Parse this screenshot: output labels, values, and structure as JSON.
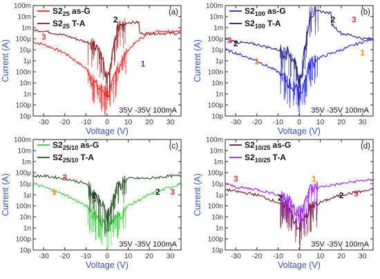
{
  "chart_data": [
    {
      "type": "line",
      "panel_label": "(a)",
      "xlabel": "Voltage (V)",
      "ylabel": "Current (A)",
      "xlim": [
        -35,
        35
      ],
      "ylog_exp_lim": [
        -11,
        -1
      ],
      "x_ticks": [
        -30,
        -20,
        -10,
        0,
        10,
        20,
        30
      ],
      "y_tick_labels": [
        "10p",
        "100p",
        "1n",
        "10n",
        "100n",
        "1µ",
        "10µ",
        "100µ",
        "1m",
        "10m",
        "100m"
      ],
      "annotation": "35V  -35V 100mA",
      "series": [
        {
          "prefix": "S2",
          "sub": "25",
          "suffix": " as-G",
          "color": "#ff1a1a",
          "points": [
            [
              -35,
              5e-05
            ],
            [
              -30,
              3e-05
            ],
            [
              -20,
              5e-06
            ],
            [
              -10,
              2e-07
            ],
            [
              -5,
              5e-09
            ],
            [
              -2,
              2e-09
            ],
            [
              0,
              1e-09
            ],
            [
              2,
              3e-09
            ],
            [
              5,
              2e-07
            ],
            [
              10,
              1e-05
            ],
            [
              15,
              8e-05
            ],
            [
              20,
              0.0003
            ],
            [
              25,
              0.0005
            ],
            [
              30,
              0.0005
            ],
            [
              35,
              0.0005
            ]
          ]
        },
        {
          "prefix": "S2",
          "sub": "25",
          "suffix": " T-A",
          "color": "#8b1a1a",
          "points": [
            [
              -35,
              0.0006
            ],
            [
              -30,
              0.0005
            ],
            [
              -20,
              0.0002
            ],
            [
              -10,
              5e-05
            ],
            [
              -5,
              3e-05
            ],
            [
              -2,
              1e-06
            ],
            [
              0,
              1e-08
            ],
            [
              2,
              1e-06
            ],
            [
              5,
              0.001
            ],
            [
              10,
              0.003
            ],
            [
              15,
              0.003
            ],
            [
              15.5,
              0.0003
            ],
            [
              20,
              0.0003
            ],
            [
              25,
              0.0003
            ],
            [
              30,
              0.0003
            ],
            [
              35,
              0.0003
            ]
          ]
        }
      ],
      "markers": [
        {
          "text": "3",
          "x": -30,
          "y": 8e-05,
          "color": "#e8334a"
        },
        {
          "text": "2",
          "x": 4,
          "y": 0.003,
          "color": "#111111"
        },
        {
          "text": "1",
          "x": 17,
          "y": 3e-07,
          "color": "#6633cc"
        }
      ]
    },
    {
      "type": "line",
      "panel_label": "(b)",
      "xlabel": "Voltage (V)",
      "ylabel": "Current (A)",
      "xlim": [
        -35,
        35
      ],
      "ylog_exp_lim": [
        -11,
        -1
      ],
      "x_ticks": [
        -30,
        -20,
        -10,
        0,
        10,
        20,
        30
      ],
      "y_tick_labels": [
        "10p",
        "100p",
        "1n",
        "10n",
        "100n",
        "1µ",
        "10µ",
        "100µ",
        "1m",
        "10m",
        "100m"
      ],
      "annotation": "35V  -35V 100mA",
      "series": [
        {
          "prefix": "S2",
          "sub": "100",
          "suffix": " as-G",
          "color": "#1a1aff",
          "points": [
            [
              -35,
              1e-05
            ],
            [
              -30,
              5e-06
            ],
            [
              -20,
              1e-06
            ],
            [
              -10,
              1e-07
            ],
            [
              -5,
              1e-08
            ],
            [
              -2,
              3e-09
            ],
            [
              0,
              1e-09
            ],
            [
              2,
              5e-09
            ],
            [
              5,
              5e-07
            ],
            [
              10,
              2e-06
            ],
            [
              20,
              1e-05
            ],
            [
              30,
              5e-05
            ],
            [
              35,
              0.0001
            ]
          ]
        },
        {
          "prefix": "S2",
          "sub": "100",
          "suffix": " T-A",
          "color": "#1a1a8b",
          "points": [
            [
              -35,
              0.0001
            ],
            [
              -30,
              5e-05
            ],
            [
              -20,
              3e-05
            ],
            [
              -10,
              1e-05
            ],
            [
              -5,
              5e-06
            ],
            [
              -2,
              1e-06
            ],
            [
              0,
              1e-08
            ],
            [
              2,
              1e-06
            ],
            [
              5,
              0.02
            ],
            [
              10,
              0.03
            ],
            [
              15,
              0.02
            ],
            [
              15.5,
              0.002
            ],
            [
              20,
              0.0003
            ],
            [
              25,
              0.0002
            ],
            [
              30,
              0.0001
            ],
            [
              35,
              0.0001
            ]
          ]
        }
      ],
      "markers": [
        {
          "text": "3",
          "x": -33,
          "y": 4e-05,
          "color": "#e8334a"
        },
        {
          "text": "2",
          "x": -30,
          "y": 2e-05,
          "color": "#111111"
        },
        {
          "text": "1",
          "x": -20,
          "y": 5e-07,
          "color": "#ff8800"
        },
        {
          "text": "2",
          "x": 16,
          "y": 0.003,
          "color": "#111111"
        },
        {
          "text": "3",
          "x": 26,
          "y": 0.003,
          "color": "#e8334a"
        },
        {
          "text": "1",
          "x": 30,
          "y": 3e-06,
          "color": "#ff8800"
        }
      ]
    },
    {
      "type": "line",
      "panel_label": "(c)",
      "xlabel": "Voltage (V)",
      "ylabel": "Current (A)",
      "xlim": [
        -35,
        35
      ],
      "ylog_exp_lim": [
        -11,
        -1
      ],
      "x_ticks": [
        -30,
        -20,
        -10,
        0,
        10,
        20,
        30
      ],
      "y_tick_labels": [
        "10p",
        "100p",
        "1n",
        "10n",
        "100n",
        "1µ",
        "10µ",
        "100µ",
        "1m",
        "10m",
        "100m"
      ],
      "annotation": "35V  -35V 100mA",
      "series": [
        {
          "prefix": "S2",
          "sub": "25/10",
          "suffix": " as-G",
          "color": "#33cc33",
          "points": [
            [
              -35,
              1e-05
            ],
            [
              -30,
              5e-06
            ],
            [
              -20,
              1e-06
            ],
            [
              -10,
              1e-07
            ],
            [
              -5,
              1e-08
            ],
            [
              -2,
              3e-09
            ],
            [
              0,
              1e-09
            ],
            [
              2,
              3e-09
            ],
            [
              5,
              1e-08
            ],
            [
              10,
              1e-07
            ],
            [
              20,
              1e-06
            ],
            [
              30,
              5e-06
            ],
            [
              35,
              1e-05
            ]
          ]
        },
        {
          "prefix": "S2",
          "sub": "25/10",
          "suffix": " T-A",
          "color": "#1f4d1f",
          "points": [
            [
              -35,
              5e-05
            ],
            [
              -30,
              5e-05
            ],
            [
              -20,
              3e-05
            ],
            [
              -10,
              1e-05
            ],
            [
              -5,
              5e-07
            ],
            [
              -2,
              1e-07
            ],
            [
              0,
              1e-08
            ],
            [
              2,
              1e-07
            ],
            [
              5,
              5e-06
            ],
            [
              10,
              3e-05
            ],
            [
              20,
              3e-05
            ],
            [
              30,
              5e-05
            ],
            [
              35,
              5e-05
            ]
          ]
        }
      ],
      "markers": [
        {
          "text": "3",
          "x": -20,
          "y": 2e-05,
          "color": "#e8334a"
        },
        {
          "text": "1",
          "x": -25,
          "y": 1e-06,
          "color": "#ff8800"
        },
        {
          "text": "2",
          "x": -6,
          "y": 5e-07,
          "color": "#111111"
        },
        {
          "text": "2",
          "x": 24,
          "y": 1e-06,
          "color": "#111111"
        },
        {
          "text": "3",
          "x": 31,
          "y": 1e-06,
          "color": "#e8334a"
        }
      ]
    },
    {
      "type": "line",
      "panel_label": "(d)",
      "xlabel": "Voltage (V)",
      "ylabel": "Current (A)",
      "xlim": [
        -35,
        35
      ],
      "ylog_exp_lim": [
        -11,
        -1
      ],
      "x_ticks": [
        -30,
        -20,
        -10,
        0,
        10,
        20,
        30
      ],
      "y_tick_labels": [
        "10p",
        "100p",
        "1n",
        "10n",
        "100n",
        "1µ",
        "10µ",
        "100µ",
        "1m",
        "10m",
        "100m"
      ],
      "annotation": "35V  -35V 100mA",
      "series": [
        {
          "prefix": "S2",
          "sub": "10/25",
          "suffix": " as-G",
          "color": "#6b0f2a",
          "points": [
            [
              -35,
              3e-06
            ],
            [
              -30,
              2e-06
            ],
            [
              -20,
              1e-06
            ],
            [
              -10,
              2e-07
            ],
            [
              -5,
              5e-08
            ],
            [
              -2,
              5e-09
            ],
            [
              0,
              1e-09
            ],
            [
              2,
              5e-09
            ],
            [
              5,
              5e-08
            ],
            [
              10,
              2e-07
            ],
            [
              20,
              1e-06
            ],
            [
              30,
              2e-06
            ],
            [
              35,
              3e-06
            ]
          ]
        },
        {
          "prefix": "S2",
          "sub": "10/25",
          "suffix": " T-A",
          "color": "#a020f0",
          "points": [
            [
              -35,
              1e-05
            ],
            [
              -30,
              5e-06
            ],
            [
              -20,
              3e-06
            ],
            [
              -10,
              1e-06
            ],
            [
              -5,
              3e-07
            ],
            [
              -2,
              5e-08
            ],
            [
              0,
              3e-08
            ],
            [
              2,
              5e-08
            ],
            [
              5,
              3e-06
            ],
            [
              10,
              5e-06
            ],
            [
              20,
              1e-05
            ],
            [
              30,
              2e-05
            ],
            [
              35,
              2e-05
            ]
          ]
        }
      ],
      "markers": [
        {
          "text": "3",
          "x": -30,
          "y": 1.5e-05,
          "color": "#e8334a"
        },
        {
          "text": "2",
          "x": -9,
          "y": 3e-07,
          "color": "#111111"
        },
        {
          "text": "1",
          "x": 7,
          "y": 1.5e-05,
          "color": "#ff8800"
        },
        {
          "text": "2",
          "x": 20,
          "y": 5e-07,
          "color": "#111111"
        },
        {
          "text": "3",
          "x": 27,
          "y": 7e-07,
          "color": "#e8334a"
        }
      ]
    }
  ]
}
